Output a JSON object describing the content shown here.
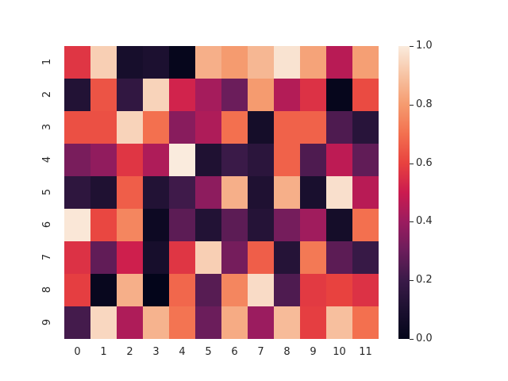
{
  "chart_data": {
    "type": "heatmap",
    "title": "",
    "xlabel": "",
    "ylabel": "",
    "x_tick_labels": [
      "0",
      "1",
      "2",
      "3",
      "4",
      "5",
      "6",
      "7",
      "8",
      "9",
      "10",
      "11"
    ],
    "y_tick_labels": [
      "1",
      "2",
      "3",
      "4",
      "5",
      "6",
      "7",
      "8",
      "9"
    ],
    "colormap": "rocket",
    "vmin": 0.0,
    "vmax": 1.0,
    "colorbar": {
      "ticks": [
        0.0,
        0.2,
        0.4,
        0.6,
        0.8,
        1.0
      ],
      "tick_labels": [
        "0.0",
        "0.2",
        "0.4",
        "0.6",
        "0.8",
        "1.0"
      ]
    },
    "values": [
      [
        0.57,
        0.93,
        0.08,
        0.1,
        0.01,
        0.85,
        0.8,
        0.87,
        0.98,
        0.82,
        0.46,
        0.81
      ],
      [
        0.12,
        0.64,
        0.17,
        0.94,
        0.52,
        0.42,
        0.3,
        0.8,
        0.45,
        0.56,
        0.01,
        0.62
      ],
      [
        0.63,
        0.63,
        0.94,
        0.7,
        0.36,
        0.44,
        0.7,
        0.07,
        0.67,
        0.67,
        0.24,
        0.14
      ],
      [
        0.33,
        0.38,
        0.57,
        0.44,
        1.0,
        0.11,
        0.2,
        0.15,
        0.67,
        0.24,
        0.47,
        0.28
      ],
      [
        0.16,
        0.11,
        0.66,
        0.12,
        0.21,
        0.37,
        0.85,
        0.11,
        0.85,
        0.09,
        0.97,
        0.46
      ],
      [
        0.99,
        0.61,
        0.75,
        0.04,
        0.27,
        0.12,
        0.27,
        0.13,
        0.32,
        0.41,
        0.07,
        0.7
      ],
      [
        0.56,
        0.28,
        0.51,
        0.08,
        0.57,
        0.93,
        0.32,
        0.66,
        0.13,
        0.72,
        0.27,
        0.19
      ],
      [
        0.59,
        0.02,
        0.85,
        0.0,
        0.68,
        0.26,
        0.75,
        0.96,
        0.24,
        0.58,
        0.6,
        0.56
      ],
      [
        0.22,
        0.95,
        0.44,
        0.86,
        0.71,
        0.3,
        0.84,
        0.4,
        0.88,
        0.59,
        0.89,
        0.7
      ]
    ],
    "grid": false,
    "legend_position": "right (colorbar)"
  },
  "colormap_stops": [
    [
      "0.00",
      "#03051a"
    ],
    [
      "0.10",
      "#1c1030"
    ],
    [
      "0.20",
      "#3a1a48"
    ],
    [
      "0.30",
      "#6b1d5b"
    ],
    [
      "0.40",
      "#9b1c5f"
    ],
    [
      "0.50",
      "#cb1b4f"
    ],
    [
      "0.60",
      "#e8423f"
    ],
    [
      "0.70",
      "#f3704f"
    ],
    [
      "0.80",
      "#f59b6f"
    ],
    [
      "0.90",
      "#f7c3a3"
    ],
    [
      "1.00",
      "#faebdd"
    ]
  ]
}
